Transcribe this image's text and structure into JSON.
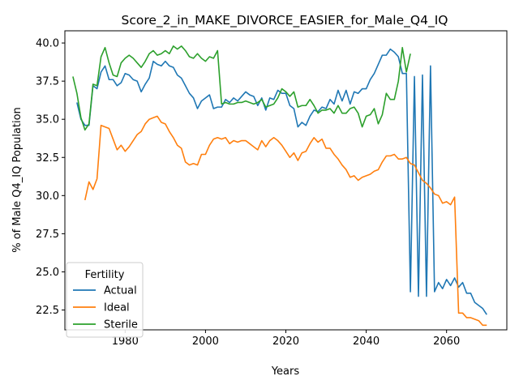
{
  "chart_data": {
    "type": "line",
    "title": "Score_2_in_MAKE_DIVORCE_EASIER_for_Male_Q4_IQ",
    "xlabel": "Years",
    "ylabel": "% of Male Q4_IQ Population",
    "xlim": [
      1965,
      2075
    ],
    "ylim": [
      21.2,
      40.8
    ],
    "xticks": [
      1980,
      2000,
      2020,
      2040,
      2060
    ],
    "yticks": [
      22.5,
      25.0,
      27.5,
      30.0,
      32.5,
      35.0,
      37.5,
      40.0
    ],
    "ytick_labels": [
      "22.5",
      "25.0",
      "27.5",
      "30.0",
      "32.5",
      "35.0",
      "37.5",
      "40.0"
    ],
    "grid": false,
    "legend": {
      "title": "Fertility",
      "position": "lower-left"
    },
    "series": [
      {
        "name": "Actual",
        "color": "#1f77b4",
        "points": [
          [
            1968,
            36.1
          ],
          [
            1969,
            35.0
          ],
          [
            1970,
            34.6
          ],
          [
            1971,
            34.6
          ],
          [
            1972,
            37.2
          ],
          [
            1973,
            37.0
          ],
          [
            1974,
            38.1
          ],
          [
            1975,
            38.5
          ],
          [
            1976,
            37.6
          ],
          [
            1977,
            37.6
          ],
          [
            1978,
            37.2
          ],
          [
            1979,
            37.4
          ],
          [
            1980,
            38.0
          ],
          [
            1981,
            37.9
          ],
          [
            1982,
            37.6
          ],
          [
            1983,
            37.5
          ],
          [
            1984,
            36.8
          ],
          [
            1985,
            37.3
          ],
          [
            1986,
            37.7
          ],
          [
            1987,
            38.8
          ],
          [
            1988,
            38.6
          ],
          [
            1989,
            38.5
          ],
          [
            1990,
            38.8
          ],
          [
            1991,
            38.5
          ],
          [
            1992,
            38.4
          ],
          [
            1993,
            37.9
          ],
          [
            1994,
            37.7
          ],
          [
            1995,
            37.2
          ],
          [
            1996,
            36.7
          ],
          [
            1997,
            36.4
          ],
          [
            1998,
            35.7
          ],
          [
            1999,
            36.2
          ],
          [
            2000,
            36.4
          ],
          [
            2001,
            36.6
          ],
          [
            2002,
            35.7
          ],
          [
            2003,
            35.8
          ],
          [
            2004,
            35.8
          ],
          [
            2005,
            36.3
          ],
          [
            2006,
            36.1
          ],
          [
            2007,
            36.4
          ],
          [
            2008,
            36.2
          ],
          [
            2009,
            36.5
          ],
          [
            2010,
            36.8
          ],
          [
            2011,
            36.6
          ],
          [
            2012,
            36.5
          ],
          [
            2013,
            35.9
          ],
          [
            2014,
            36.4
          ],
          [
            2015,
            35.6
          ],
          [
            2016,
            36.4
          ],
          [
            2017,
            36.3
          ],
          [
            2018,
            36.9
          ],
          [
            2019,
            36.7
          ],
          [
            2020,
            36.7
          ],
          [
            2021,
            35.9
          ],
          [
            2022,
            35.7
          ],
          [
            2023,
            34.5
          ],
          [
            2024,
            34.8
          ],
          [
            2025,
            34.6
          ],
          [
            2026,
            35.2
          ],
          [
            2027,
            35.6
          ],
          [
            2028,
            35.5
          ],
          [
            2029,
            35.8
          ],
          [
            2030,
            35.7
          ],
          [
            2031,
            36.3
          ],
          [
            2032,
            36.0
          ],
          [
            2033,
            36.9
          ],
          [
            2034,
            36.2
          ],
          [
            2035,
            36.9
          ],
          [
            2036,
            36.0
          ],
          [
            2037,
            36.8
          ],
          [
            2038,
            36.7
          ],
          [
            2039,
            37.0
          ],
          [
            2040,
            37.0
          ],
          [
            2041,
            37.6
          ],
          [
            2042,
            38.0
          ],
          [
            2043,
            38.6
          ],
          [
            2044,
            39.2
          ],
          [
            2045,
            39.2
          ],
          [
            2046,
            39.6
          ],
          [
            2047,
            39.4
          ],
          [
            2048,
            39.1
          ],
          [
            2049,
            38.0
          ],
          [
            2050,
            38.0
          ],
          [
            2051,
            23.7
          ],
          [
            2052,
            37.8
          ],
          [
            2053,
            23.4
          ],
          [
            2054,
            37.9
          ],
          [
            2055,
            23.4
          ],
          [
            2056,
            38.5
          ],
          [
            2057,
            23.7
          ],
          [
            2058,
            24.3
          ],
          [
            2059,
            23.9
          ],
          [
            2060,
            24.5
          ],
          [
            2061,
            24.1
          ],
          [
            2062,
            24.6
          ],
          [
            2063,
            24.0
          ],
          [
            2064,
            24.3
          ],
          [
            2065,
            23.6
          ],
          [
            2066,
            23.6
          ],
          [
            2067,
            23.0
          ],
          [
            2068,
            22.8
          ],
          [
            2069,
            22.6
          ],
          [
            2070,
            22.2
          ]
        ]
      },
      {
        "name": "Ideal",
        "color": "#ff7f0e",
        "points": [
          [
            1970,
            29.7
          ],
          [
            1971,
            30.9
          ],
          [
            1972,
            30.4
          ],
          [
            1973,
            31.1
          ],
          [
            1974,
            34.6
          ],
          [
            1975,
            34.5
          ],
          [
            1976,
            34.4
          ],
          [
            1977,
            33.7
          ],
          [
            1978,
            33.0
          ],
          [
            1979,
            33.3
          ],
          [
            1980,
            32.9
          ],
          [
            1981,
            33.2
          ],
          [
            1982,
            33.6
          ],
          [
            1983,
            34.0
          ],
          [
            1984,
            34.2
          ],
          [
            1985,
            34.7
          ],
          [
            1986,
            35.0
          ],
          [
            1987,
            35.1
          ],
          [
            1988,
            35.2
          ],
          [
            1989,
            34.8
          ],
          [
            1990,
            34.7
          ],
          [
            1991,
            34.2
          ],
          [
            1992,
            33.8
          ],
          [
            1993,
            33.3
          ],
          [
            1994,
            33.1
          ],
          [
            1995,
            32.2
          ],
          [
            1996,
            32.0
          ],
          [
            1997,
            32.1
          ],
          [
            1998,
            32.0
          ],
          [
            1999,
            32.7
          ],
          [
            2000,
            32.7
          ],
          [
            2001,
            33.3
          ],
          [
            2002,
            33.7
          ],
          [
            2003,
            33.8
          ],
          [
            2004,
            33.7
          ],
          [
            2005,
            33.8
          ],
          [
            2006,
            33.4
          ],
          [
            2007,
            33.6
          ],
          [
            2008,
            33.5
          ],
          [
            2009,
            33.6
          ],
          [
            2010,
            33.6
          ],
          [
            2011,
            33.4
          ],
          [
            2012,
            33.2
          ],
          [
            2013,
            33.0
          ],
          [
            2014,
            33.6
          ],
          [
            2015,
            33.2
          ],
          [
            2016,
            33.6
          ],
          [
            2017,
            33.8
          ],
          [
            2018,
            33.6
          ],
          [
            2019,
            33.3
          ],
          [
            2020,
            32.9
          ],
          [
            2021,
            32.5
          ],
          [
            2022,
            32.8
          ],
          [
            2023,
            32.3
          ],
          [
            2024,
            32.8
          ],
          [
            2025,
            32.9
          ],
          [
            2026,
            33.4
          ],
          [
            2027,
            33.8
          ],
          [
            2028,
            33.5
          ],
          [
            2029,
            33.7
          ],
          [
            2030,
            33.1
          ],
          [
            2031,
            33.1
          ],
          [
            2032,
            32.7
          ],
          [
            2033,
            32.4
          ],
          [
            2034,
            32.0
          ],
          [
            2035,
            31.7
          ],
          [
            2036,
            31.2
          ],
          [
            2037,
            31.3
          ],
          [
            2038,
            31.0
          ],
          [
            2039,
            31.2
          ],
          [
            2040,
            31.3
          ],
          [
            2041,
            31.4
          ],
          [
            2042,
            31.6
          ],
          [
            2043,
            31.7
          ],
          [
            2044,
            32.2
          ],
          [
            2045,
            32.6
          ],
          [
            2046,
            32.6
          ],
          [
            2047,
            32.7
          ],
          [
            2048,
            32.4
          ],
          [
            2049,
            32.4
          ],
          [
            2050,
            32.5
          ],
          [
            2051,
            32.1
          ],
          [
            2052,
            32.0
          ],
          [
            2053,
            31.5
          ],
          [
            2054,
            31.0
          ],
          [
            2055,
            30.8
          ],
          [
            2056,
            30.5
          ],
          [
            2057,
            30.1
          ],
          [
            2058,
            30.0
          ],
          [
            2059,
            29.5
          ],
          [
            2060,
            29.6
          ],
          [
            2061,
            29.4
          ],
          [
            2062,
            29.9
          ],
          [
            2063,
            22.3
          ],
          [
            2064,
            22.3
          ],
          [
            2065,
            22.0
          ],
          [
            2066,
            22.0
          ],
          [
            2067,
            21.9
          ],
          [
            2068,
            21.8
          ],
          [
            2069,
            21.5
          ],
          [
            2070,
            21.5
          ]
        ]
      },
      {
        "name": "Sterile",
        "color": "#2ca02c",
        "points": [
          [
            1967,
            37.8
          ],
          [
            1968,
            36.7
          ],
          [
            1969,
            35.1
          ],
          [
            1970,
            34.3
          ],
          [
            1971,
            34.7
          ],
          [
            1972,
            37.3
          ],
          [
            1973,
            37.2
          ],
          [
            1974,
            39.1
          ],
          [
            1975,
            39.7
          ],
          [
            1976,
            38.7
          ],
          [
            1977,
            37.9
          ],
          [
            1978,
            37.8
          ],
          [
            1979,
            38.7
          ],
          [
            1980,
            39.0
          ],
          [
            1981,
            39.2
          ],
          [
            1982,
            39.0
          ],
          [
            1983,
            38.7
          ],
          [
            1984,
            38.4
          ],
          [
            1985,
            38.8
          ],
          [
            1986,
            39.3
          ],
          [
            1987,
            39.5
          ],
          [
            1988,
            39.2
          ],
          [
            1989,
            39.3
          ],
          [
            1990,
            39.5
          ],
          [
            1991,
            39.3
          ],
          [
            1992,
            39.8
          ],
          [
            1993,
            39.6
          ],
          [
            1994,
            39.8
          ],
          [
            1995,
            39.5
          ],
          [
            1996,
            39.1
          ],
          [
            1997,
            39.0
          ],
          [
            1998,
            39.3
          ],
          [
            1999,
            39.0
          ],
          [
            2000,
            38.8
          ],
          [
            2001,
            39.1
          ],
          [
            2002,
            39.0
          ],
          [
            2003,
            39.5
          ],
          [
            2004,
            36.0
          ],
          [
            2005,
            36.1
          ],
          [
            2006,
            36.0
          ],
          [
            2007,
            36.0
          ],
          [
            2008,
            36.1
          ],
          [
            2009,
            36.1
          ],
          [
            2010,
            36.2
          ],
          [
            2011,
            36.1
          ],
          [
            2012,
            36.0
          ],
          [
            2013,
            36.1
          ],
          [
            2014,
            36.3
          ],
          [
            2015,
            35.8
          ],
          [
            2016,
            35.9
          ],
          [
            2017,
            36.0
          ],
          [
            2018,
            36.4
          ],
          [
            2019,
            37.0
          ],
          [
            2020,
            36.8
          ],
          [
            2021,
            36.5
          ],
          [
            2022,
            36.8
          ],
          [
            2023,
            35.8
          ],
          [
            2024,
            35.9
          ],
          [
            2025,
            35.9
          ],
          [
            2026,
            36.3
          ],
          [
            2027,
            35.9
          ],
          [
            2028,
            35.4
          ],
          [
            2029,
            35.6
          ],
          [
            2030,
            35.6
          ],
          [
            2031,
            35.7
          ],
          [
            2032,
            35.4
          ],
          [
            2033,
            35.9
          ],
          [
            2034,
            35.4
          ],
          [
            2035,
            35.4
          ],
          [
            2036,
            35.7
          ],
          [
            2037,
            35.8
          ],
          [
            2038,
            35.4
          ],
          [
            2039,
            34.5
          ],
          [
            2040,
            35.2
          ],
          [
            2041,
            35.3
          ],
          [
            2042,
            35.7
          ],
          [
            2043,
            34.7
          ],
          [
            2044,
            35.3
          ],
          [
            2045,
            36.7
          ],
          [
            2046,
            36.3
          ],
          [
            2047,
            36.3
          ],
          [
            2048,
            37.5
          ],
          [
            2049,
            39.7
          ],
          [
            2050,
            38.1
          ],
          [
            2051,
            39.3
          ]
        ]
      }
    ]
  }
}
